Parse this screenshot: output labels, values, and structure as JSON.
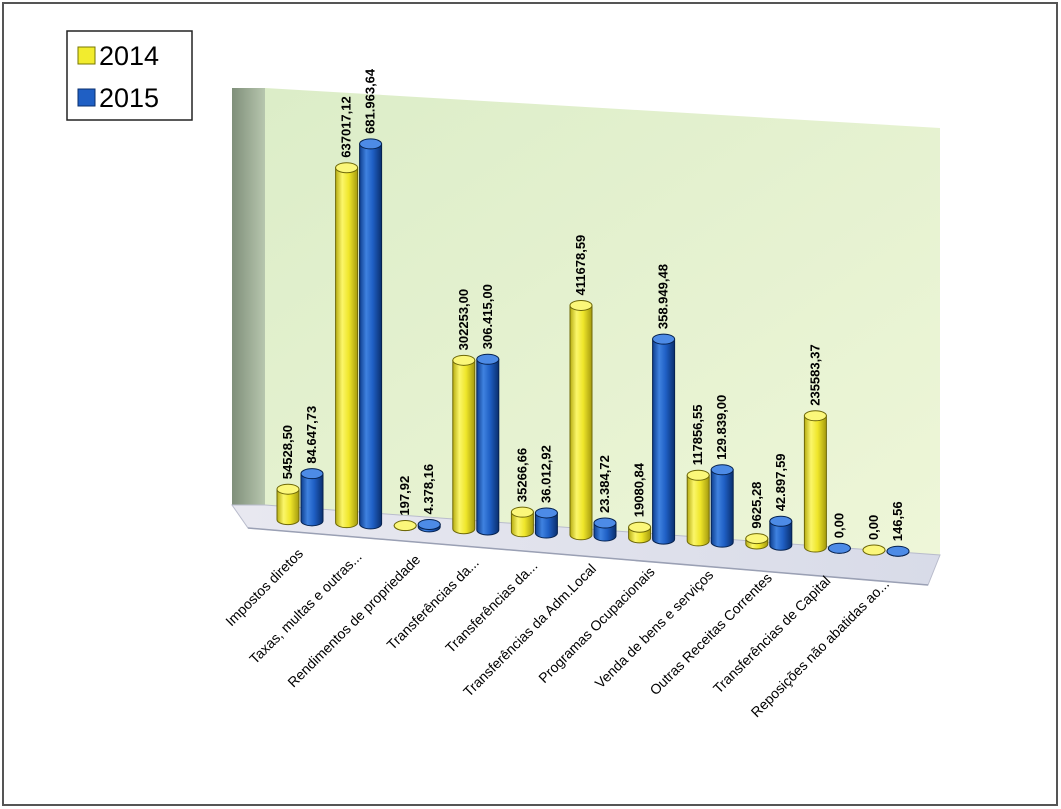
{
  "chart_data": {
    "type": "bar",
    "categories": [
      "Impostos diretos",
      "Taxas, multas e outras...",
      "Rendimentos de propriedade",
      "Transferências da...",
      "Transferências da...",
      "Transferências da Adm.Local",
      "Programas Ocupacionais",
      "Venda de bens e serviços",
      "Outras Receitas Correntes",
      "Transferências de Capital",
      "Reposições não abatidas ao..."
    ],
    "series": [
      {
        "name": "2014",
        "color": "#f2ec2e",
        "values": [
          54528.5,
          637017.12,
          197.92,
          302253.0,
          35266.66,
          411678.59,
          19080.84,
          117856.55,
          9625.28,
          235583.37,
          0.0
        ],
        "labels": [
          "54528,50",
          "637017,12",
          "197,92",
          "302253,00",
          "35266,66",
          "411678,59",
          "19080,84",
          "117856,55",
          "9625,28",
          "235583,37",
          "0,00"
        ]
      },
      {
        "name": "2015",
        "color": "#1f5fc4",
        "values": [
          84647.73,
          681963.64,
          4378.16,
          306415.0,
          36012.92,
          23384.72,
          358949.48,
          129839.0,
          42897.59,
          0.0,
          146.56
        ],
        "labels": [
          "84.647,73",
          "681.963,64",
          "4.378,16",
          "306.415,00",
          "36.012,92",
          "23.384,72",
          "358.949,48",
          "129.839,00",
          "42.897,59",
          "0,00",
          "146,56"
        ]
      }
    ],
    "legend_position": "top-left",
    "ylim": [
      0,
      700000
    ],
    "grid": false
  }
}
